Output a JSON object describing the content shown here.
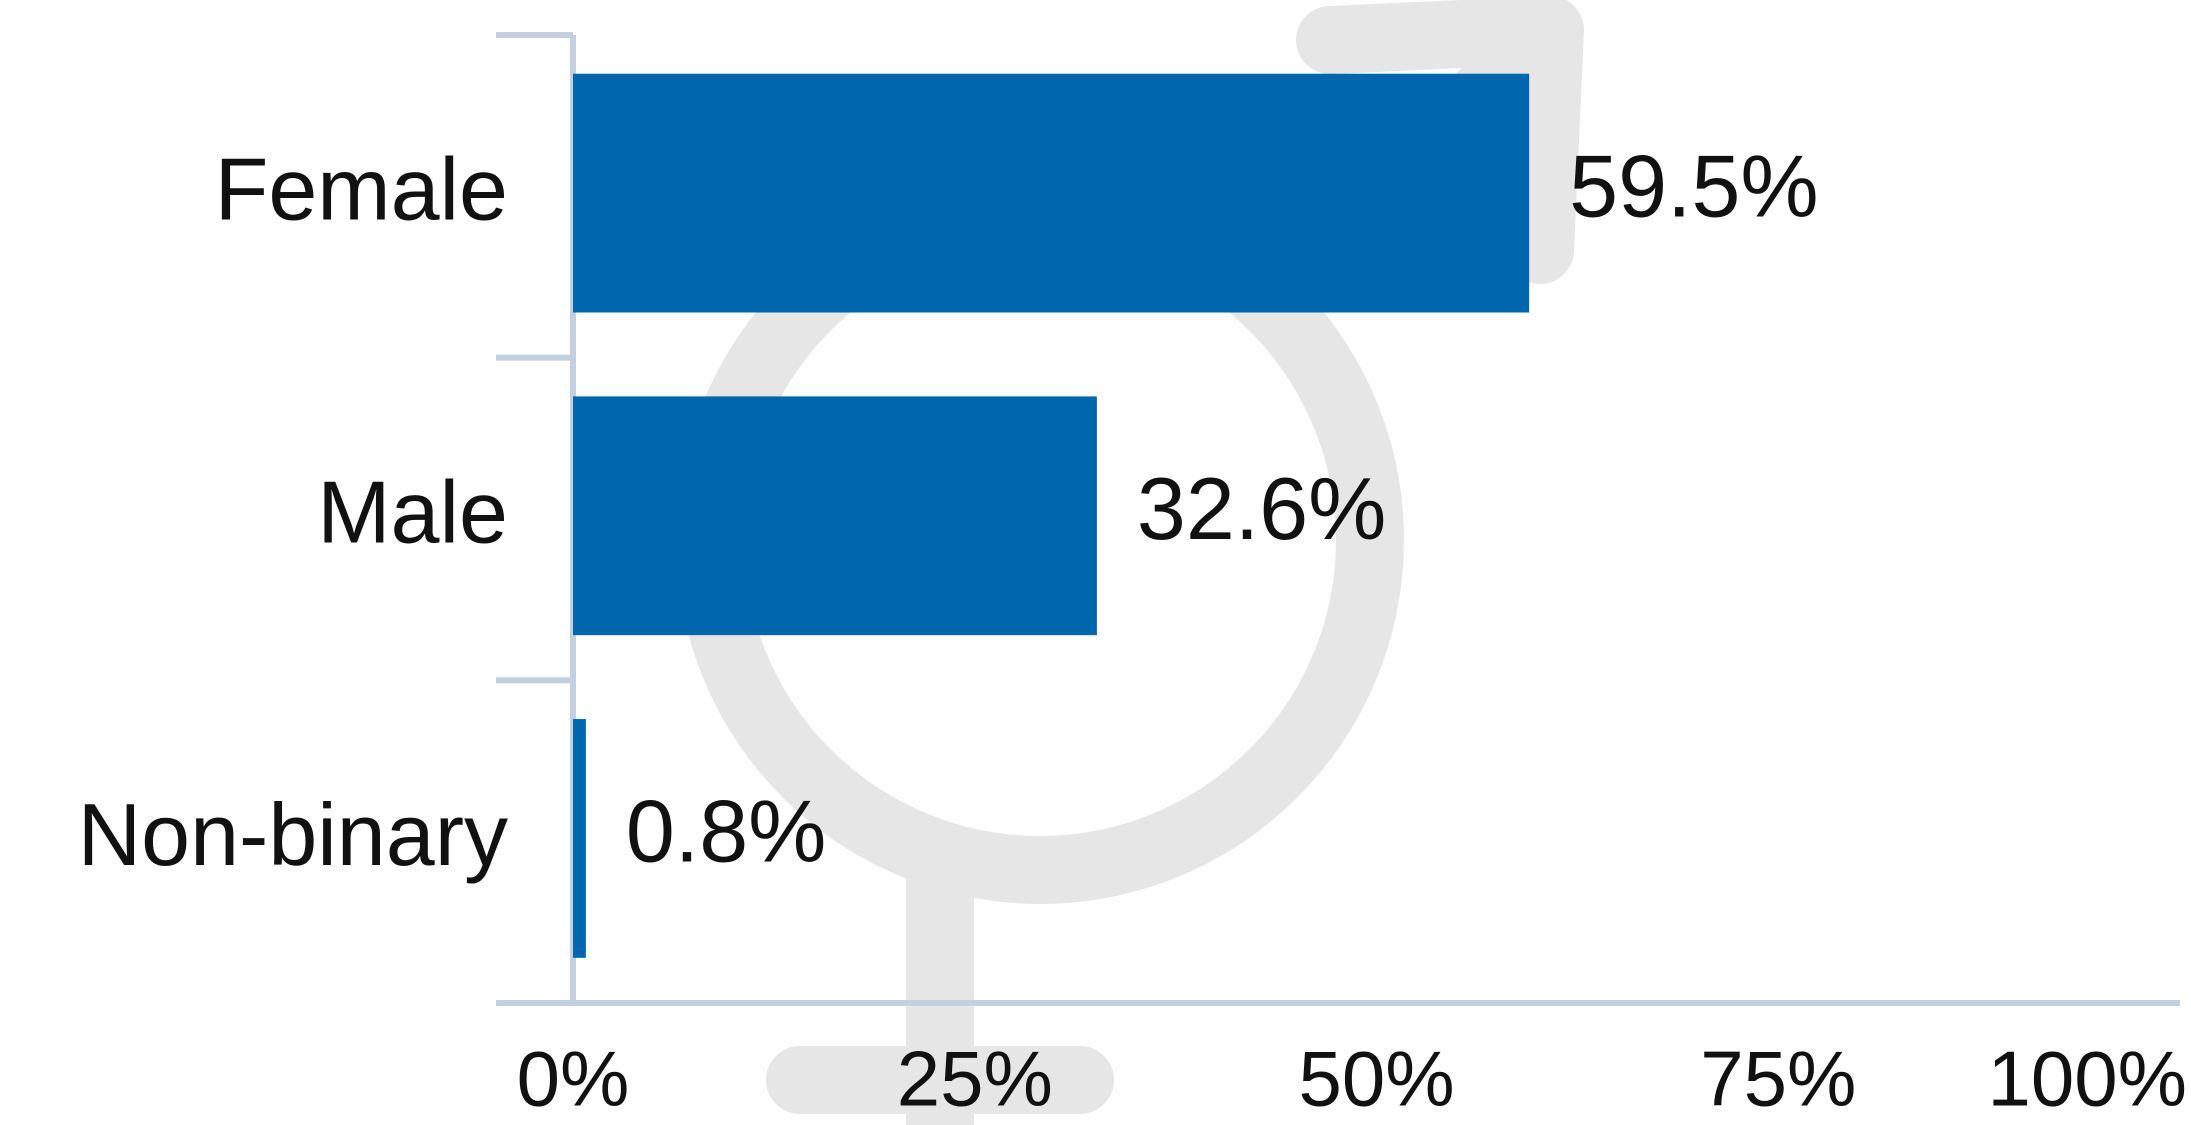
{
  "chart_data": {
    "type": "bar",
    "orientation": "horizontal",
    "categories": [
      "Female",
      "Male",
      "Non-binary"
    ],
    "values": [
      59.5,
      32.6,
      0.8
    ],
    "value_labels": [
      "59.5%",
      "32.6%",
      "0.8%"
    ],
    "color": "#0066ae",
    "xlim": [
      0,
      100
    ],
    "xticks": [
      {
        "value": 0,
        "label": "0%"
      },
      {
        "value": 25,
        "label": "25%"
      },
      {
        "value": 50,
        "label": "50%"
      },
      {
        "value": 75,
        "label": "75%"
      },
      {
        "value": 100,
        "label": "100%"
      }
    ],
    "grid": false
  }
}
